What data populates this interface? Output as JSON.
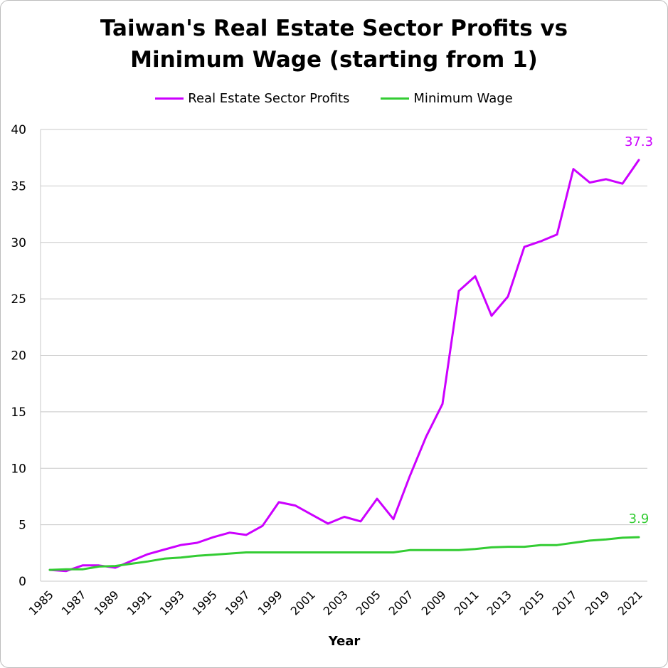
{
  "chart_data": {
    "type": "line",
    "title_line1": "Taiwan's Real Estate Sector Profits vs",
    "title_line2": "Minimum Wage (starting from 1)",
    "xlabel": "Year",
    "ylabel": "",
    "ylim": [
      0,
      40
    ],
    "yticks": [
      0,
      5,
      10,
      15,
      20,
      25,
      30,
      35,
      40
    ],
    "grid": true,
    "legend_position": "top-center",
    "x": [
      1985,
      1986,
      1987,
      1988,
      1989,
      1990,
      1991,
      1992,
      1993,
      1994,
      1995,
      1996,
      1997,
      1998,
      1999,
      2000,
      2001,
      2002,
      2003,
      2004,
      2005,
      2006,
      2007,
      2008,
      2009,
      2010,
      2011,
      2012,
      2013,
      2014,
      2015,
      2016,
      2017,
      2018,
      2019,
      2020,
      2021
    ],
    "xtick_labels": [
      "1985",
      "1987",
      "1989",
      "1991",
      "1993",
      "1995",
      "1997",
      "1999",
      "2001",
      "2003",
      "2005",
      "2007",
      "2009",
      "2011",
      "2013",
      "2015",
      "2017",
      "2019",
      "2021"
    ],
    "series": [
      {
        "name": "Real Estate Sector Profits",
        "color": "#cc00ff",
        "values": [
          1.0,
          0.9,
          1.4,
          1.4,
          1.2,
          1.8,
          2.4,
          2.8,
          3.2,
          3.4,
          3.9,
          4.3,
          4.1,
          4.9,
          7.0,
          6.7,
          5.9,
          5.1,
          5.7,
          5.3,
          7.3,
          5.5,
          9.3,
          12.8,
          15.7,
          25.7,
          27.0,
          23.5,
          25.2,
          29.6,
          30.1,
          30.7,
          36.5,
          35.3,
          35.6,
          35.2,
          37.3
        ],
        "end_label": "37.3"
      },
      {
        "name": "Minimum Wage",
        "color": "#33cc33",
        "values": [
          1.0,
          1.05,
          1.05,
          1.3,
          1.35,
          1.55,
          1.75,
          2.0,
          2.1,
          2.25,
          2.35,
          2.45,
          2.55,
          2.55,
          2.55,
          2.55,
          2.55,
          2.55,
          2.55,
          2.55,
          2.55,
          2.55,
          2.75,
          2.75,
          2.75,
          2.75,
          2.85,
          3.0,
          3.05,
          3.05,
          3.2,
          3.2,
          3.4,
          3.6,
          3.7,
          3.85,
          3.9
        ],
        "end_label": "3.9"
      }
    ]
  }
}
